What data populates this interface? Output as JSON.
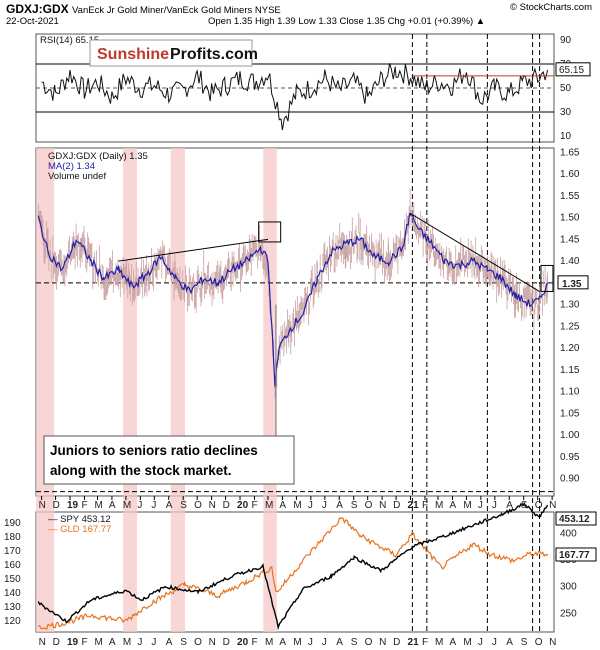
{
  "header": {
    "symbol": "GDXJ:GDX",
    "description": "VanEck Jr Gold Miner/VanEck Gold Miners NYSE",
    "watermark": "© StockCharts.com",
    "date": "22-Oct-2021",
    "ohlc": "Open 1.35  High 1.39  Low 1.33  Close 1.35  Chg +0.01 (+0.39%) ▲"
  },
  "brand": {
    "part1": "Sunshine",
    "part2": "Profits.com"
  },
  "annotation": [
    "Juniors to seniors ratio declines",
    "along with the stock market."
  ],
  "colors": {
    "ratio": "#1a1a8c",
    "ma": "#1f1fa8",
    "spy": "#000000",
    "gld": "#e8731c",
    "highlight": "#f6c8c8",
    "accent_red": "#c0392b"
  },
  "chart_data": [
    {
      "type": "line",
      "name": "rsi-panel",
      "legend": "RSI(14) 65.15",
      "y_ticks": [
        10,
        30,
        50,
        70,
        90
      ],
      "ylim": [
        5,
        95
      ],
      "reference_lines": [
        30,
        50,
        70
      ],
      "last_value_label": "65.15",
      "x": [
        "2018-11-01",
        "2018-12-01",
        "2019-01-01",
        "2019-02-01",
        "2019-03-01",
        "2019-04-01",
        "2019-05-01",
        "2019-06-01",
        "2019-07-01",
        "2019-08-01",
        "2019-09-01",
        "2019-10-01",
        "2019-11-01",
        "2019-12-01",
        "2020-01-01",
        "2020-02-01",
        "2020-03-01",
        "2020-04-01",
        "2020-05-01",
        "2020-06-01",
        "2020-07-01",
        "2020-08-01",
        "2020-09-01",
        "2020-10-01",
        "2020-11-01",
        "2020-12-01",
        "2021-01-01",
        "2021-02-01",
        "2021-03-01",
        "2021-04-01",
        "2021-05-01",
        "2021-06-01",
        "2021-07-01",
        "2021-08-01",
        "2021-09-01",
        "2021-10-01",
        "2021-10-22"
      ],
      "values": [
        55,
        45,
        62,
        48,
        55,
        42,
        58,
        50,
        52,
        45,
        48,
        60,
        45,
        52,
        58,
        55,
        62,
        22,
        45,
        50,
        58,
        48,
        55,
        42,
        58,
        65,
        60,
        50,
        55,
        52,
        65,
        40,
        50,
        45,
        55,
        58,
        65.15
      ]
    },
    {
      "type": "line",
      "name": "ratio-panel",
      "title": "GDXJ:GDX (Daily) 1.35",
      "legend": [
        "GDXJ:GDX (Daily) 1.35",
        "MA(2) 1.34",
        "Volume undef"
      ],
      "y_ticks": [
        0.9,
        0.95,
        1.0,
        1.05,
        1.1,
        1.15,
        1.2,
        1.25,
        1.3,
        1.35,
        1.4,
        1.45,
        1.5,
        1.55,
        1.6,
        1.65
      ],
      "ylim": [
        0.86,
        1.66
      ],
      "last_value_label": "1.35",
      "x": [
        "2018-10-25",
        "2018-11-15",
        "2018-12-15",
        "2019-01-15",
        "2019-02-15",
        "2019-03-15",
        "2019-04-15",
        "2019-05-15",
        "2019-06-15",
        "2019-07-15",
        "2019-08-15",
        "2019-09-15",
        "2019-10-15",
        "2019-11-15",
        "2019-12-15",
        "2020-01-15",
        "2020-02-15",
        "2020-03-01",
        "2020-03-16",
        "2020-03-25",
        "2020-04-15",
        "2020-05-15",
        "2020-06-15",
        "2020-07-15",
        "2020-08-15",
        "2020-09-15",
        "2020-10-15",
        "2020-11-15",
        "2020-12-15",
        "2020-12-31",
        "2021-01-20",
        "2021-02-15",
        "2021-03-15",
        "2021-04-15",
        "2021-05-15",
        "2021-06-15",
        "2021-07-15",
        "2021-08-15",
        "2021-09-15",
        "2021-10-05",
        "2021-10-22"
      ],
      "values": [
        1.5,
        1.42,
        1.38,
        1.45,
        1.4,
        1.36,
        1.38,
        1.34,
        1.37,
        1.41,
        1.36,
        1.33,
        1.36,
        1.35,
        1.38,
        1.4,
        1.43,
        1.4,
        1.12,
        1.2,
        1.24,
        1.28,
        1.36,
        1.42,
        1.44,
        1.45,
        1.41,
        1.4,
        1.43,
        1.51,
        1.47,
        1.44,
        1.4,
        1.39,
        1.4,
        1.38,
        1.36,
        1.32,
        1.3,
        1.31,
        1.35
      ],
      "reference_lines": [
        1.35,
        0.87
      ],
      "trendlines": [
        {
          "from": [
            "2019-04-15",
            1.4
          ],
          "to": [
            "2020-03-01",
            1.45
          ]
        },
        {
          "from": [
            "2020-12-31",
            1.51
          ],
          "to": [
            "2021-10-05",
            1.33
          ]
        }
      ]
    },
    {
      "type": "line",
      "name": "spy-gld-panel",
      "series": [
        {
          "name": "SPY 453.12",
          "last_value_label": "453.12",
          "x": [
            "2018-10-25",
            "2018-12-24",
            "2019-02-15",
            "2019-05-01",
            "2019-06-03",
            "2019-07-25",
            "2019-10-03",
            "2019-12-15",
            "2020-02-19",
            "2020-03-23",
            "2020-05-15",
            "2020-07-15",
            "2020-09-02",
            "2020-10-30",
            "2021-01-05",
            "2021-03-15",
            "2021-05-15",
            "2021-07-15",
            "2021-09-02",
            "2021-10-04",
            "2021-10-22"
          ],
          "values": [
            270,
            235,
            275,
            293,
            275,
            300,
            290,
            320,
            338,
            225,
            295,
            320,
            355,
            330,
            375,
            395,
            415,
            435,
            455,
            430,
            453.12
          ]
        },
        {
          "name": "GLD 167.77",
          "last_value_label": "167.77",
          "x": [
            "2018-10-25",
            "2018-12-15",
            "2019-02-15",
            "2019-05-01",
            "2019-06-20",
            "2019-09-04",
            "2019-11-15",
            "2020-01-15",
            "2020-03-09",
            "2020-03-19",
            "2020-05-15",
            "2020-08-06",
            "2020-09-15",
            "2020-11-30",
            "2021-01-05",
            "2021-03-08",
            "2021-05-15",
            "2021-06-20",
            "2021-08-10",
            "2021-09-15",
            "2021-10-22"
          ],
          "values": [
            115,
            118,
            124,
            120,
            132,
            146,
            138,
            148,
            158,
            140,
            163,
            194,
            181,
            167,
            182,
            158,
            175,
            168,
            163,
            168,
            167.77
          ]
        }
      ],
      "y_ticks_left": [
        120,
        130,
        140,
        150,
        160,
        170,
        180,
        190
      ],
      "y_ticks_right": [
        250,
        300,
        350,
        400
      ]
    }
  ],
  "x_axis": {
    "labels": [
      "N",
      "D",
      "19",
      "F",
      "M",
      "A",
      "M",
      "J",
      "J",
      "A",
      "S",
      "O",
      "N",
      "D",
      "20",
      "F",
      "M",
      "A",
      "M",
      "J",
      "J",
      "A",
      "S",
      "O",
      "N",
      "D",
      "21",
      "F",
      "M",
      "A",
      "M",
      "J",
      "J",
      "A",
      "S",
      "O",
      "N"
    ]
  }
}
